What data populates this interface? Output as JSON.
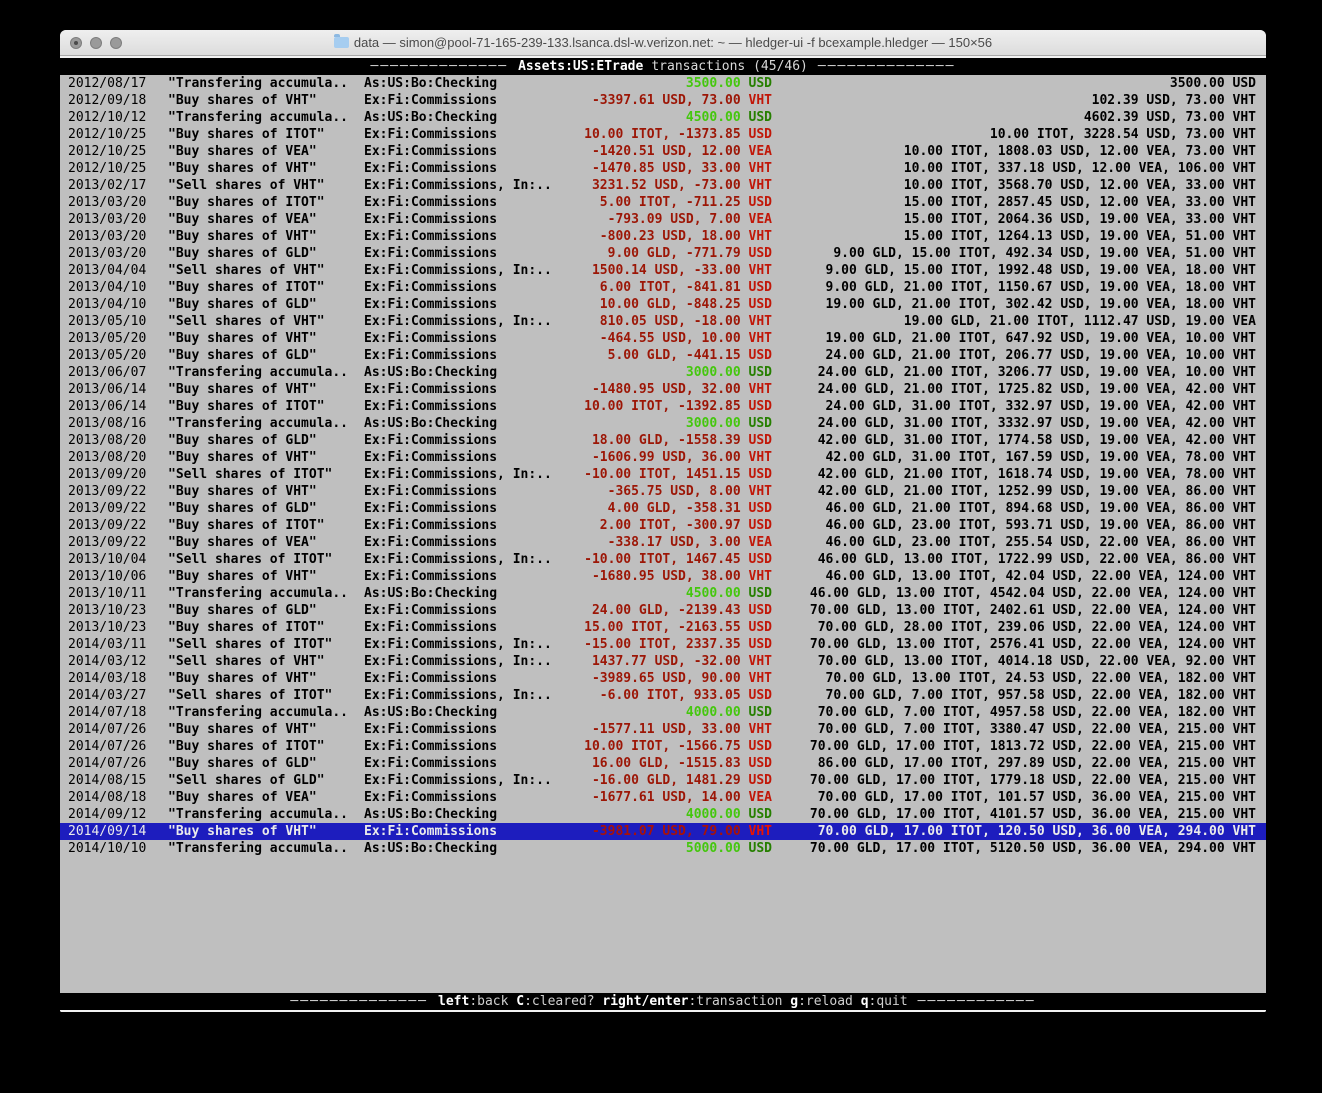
{
  "window": {
    "title": "data — simon@pool-71-165-239-133.lsanca.dsl-w.verizon.net: ~ — hledger-ui -f bcexample.hledger — 150×56"
  },
  "header": {
    "divider_left": "──────────────",
    "account": "Assets:US:ETrade",
    "label": "transactions (45/46)",
    "divider_right": "──────────────"
  },
  "footer": {
    "divider_left": "──────────────",
    "divider_right": "────────────",
    "keys": [
      {
        "key": "left",
        "desc": ":back"
      },
      {
        "key": "C",
        "desc": ":cleared?"
      },
      {
        "key": "right/enter",
        "desc": ":transaction"
      },
      {
        "key": "g",
        "desc": ":reload"
      },
      {
        "key": "q",
        "desc": ":quit"
      }
    ]
  },
  "colors": {
    "pos_bright": "#44c70d",
    "pos_dark": "#267f00",
    "neg_dark": "#9c1606",
    "neg_bright": "#c11708",
    "selected_bg": "#1d1dbe",
    "terminal_bg": "#bfbfbf"
  },
  "register": {
    "rows": [
      {
        "date": "2012/08/17",
        "desc": "\"Transfering accumula..",
        "account": "As:US:Bo:Checking",
        "amount": "3500.00 USD",
        "sign": "pos",
        "balance": "3500.00 USD",
        "selected": false
      },
      {
        "date": "2012/09/18",
        "desc": "\"Buy shares of VHT\"",
        "account": "Ex:Fi:Commissions",
        "amount": "-3397.61 USD, 73.00 VHT",
        "sign": "neg",
        "balance": "102.39 USD, 73.00 VHT",
        "selected": false
      },
      {
        "date": "2012/10/12",
        "desc": "\"Transfering accumula..",
        "account": "As:US:Bo:Checking",
        "amount": "4500.00 USD",
        "sign": "pos",
        "balance": "4602.39 USD, 73.00 VHT",
        "selected": false
      },
      {
        "date": "2012/10/25",
        "desc": "\"Buy shares of ITOT\"",
        "account": "Ex:Fi:Commissions",
        "amount": "10.00 ITOT, -1373.85 USD",
        "sign": "neg",
        "balance": "10.00 ITOT, 3228.54 USD, 73.00 VHT",
        "selected": false
      },
      {
        "date": "2012/10/25",
        "desc": "\"Buy shares of VEA\"",
        "account": "Ex:Fi:Commissions",
        "amount": "-1420.51 USD, 12.00 VEA",
        "sign": "neg",
        "balance": "10.00 ITOT, 1808.03 USD, 12.00 VEA, 73.00 VHT",
        "selected": false
      },
      {
        "date": "2012/10/25",
        "desc": "\"Buy shares of VHT\"",
        "account": "Ex:Fi:Commissions",
        "amount": "-1470.85 USD, 33.00 VHT",
        "sign": "neg",
        "balance": "10.00 ITOT, 337.18 USD, 12.00 VEA, 106.00 VHT",
        "selected": false
      },
      {
        "date": "2013/02/17",
        "desc": "\"Sell shares of VHT\"",
        "account": "Ex:Fi:Commissions, In:..",
        "amount": "3231.52 USD, -73.00 VHT",
        "sign": "neg",
        "balance": "10.00 ITOT, 3568.70 USD, 12.00 VEA, 33.00 VHT",
        "selected": false
      },
      {
        "date": "2013/03/20",
        "desc": "\"Buy shares of ITOT\"",
        "account": "Ex:Fi:Commissions",
        "amount": "5.00 ITOT, -711.25 USD",
        "sign": "neg",
        "balance": "15.00 ITOT, 2857.45 USD, 12.00 VEA, 33.00 VHT",
        "selected": false
      },
      {
        "date": "2013/03/20",
        "desc": "\"Buy shares of VEA\"",
        "account": "Ex:Fi:Commissions",
        "amount": "-793.09 USD, 7.00 VEA",
        "sign": "neg",
        "balance": "15.00 ITOT, 2064.36 USD, 19.00 VEA, 33.00 VHT",
        "selected": false
      },
      {
        "date": "2013/03/20",
        "desc": "\"Buy shares of VHT\"",
        "account": "Ex:Fi:Commissions",
        "amount": "-800.23 USD, 18.00 VHT",
        "sign": "neg",
        "balance": "15.00 ITOT, 1264.13 USD, 19.00 VEA, 51.00 VHT",
        "selected": false
      },
      {
        "date": "2013/03/20",
        "desc": "\"Buy shares of GLD\"",
        "account": "Ex:Fi:Commissions",
        "amount": "9.00 GLD, -771.79 USD",
        "sign": "neg",
        "balance": "9.00 GLD, 15.00 ITOT, 492.34 USD, 19.00 VEA, 51.00 VHT",
        "selected": false
      },
      {
        "date": "2013/04/04",
        "desc": "\"Sell shares of VHT\"",
        "account": "Ex:Fi:Commissions, In:..",
        "amount": "1500.14 USD, -33.00 VHT",
        "sign": "neg",
        "balance": "9.00 GLD, 15.00 ITOT, 1992.48 USD, 19.00 VEA, 18.00 VHT",
        "selected": false
      },
      {
        "date": "2013/04/10",
        "desc": "\"Buy shares of ITOT\"",
        "account": "Ex:Fi:Commissions",
        "amount": "6.00 ITOT, -841.81 USD",
        "sign": "neg",
        "balance": "9.00 GLD, 21.00 ITOT, 1150.67 USD, 19.00 VEA, 18.00 VHT",
        "selected": false
      },
      {
        "date": "2013/04/10",
        "desc": "\"Buy shares of GLD\"",
        "account": "Ex:Fi:Commissions",
        "amount": "10.00 GLD, -848.25 USD",
        "sign": "neg",
        "balance": "19.00 GLD, 21.00 ITOT, 302.42 USD, 19.00 VEA, 18.00 VHT",
        "selected": false
      },
      {
        "date": "2013/05/10",
        "desc": "\"Sell shares of VHT\"",
        "account": "Ex:Fi:Commissions, In:..",
        "amount": "810.05 USD, -18.00 VHT",
        "sign": "neg",
        "balance": "19.00 GLD, 21.00 ITOT, 1112.47 USD, 19.00 VEA",
        "selected": false
      },
      {
        "date": "2013/05/20",
        "desc": "\"Buy shares of VHT\"",
        "account": "Ex:Fi:Commissions",
        "amount": "-464.55 USD, 10.00 VHT",
        "sign": "neg",
        "balance": "19.00 GLD, 21.00 ITOT, 647.92 USD, 19.00 VEA, 10.00 VHT",
        "selected": false
      },
      {
        "date": "2013/05/20",
        "desc": "\"Buy shares of GLD\"",
        "account": "Ex:Fi:Commissions",
        "amount": "5.00 GLD, -441.15 USD",
        "sign": "neg",
        "balance": "24.00 GLD, 21.00 ITOT, 206.77 USD, 19.00 VEA, 10.00 VHT",
        "selected": false
      },
      {
        "date": "2013/06/07",
        "desc": "\"Transfering accumula..",
        "account": "As:US:Bo:Checking",
        "amount": "3000.00 USD",
        "sign": "pos",
        "balance": "24.00 GLD, 21.00 ITOT, 3206.77 USD, 19.00 VEA, 10.00 VHT",
        "selected": false
      },
      {
        "date": "2013/06/14",
        "desc": "\"Buy shares of VHT\"",
        "account": "Ex:Fi:Commissions",
        "amount": "-1480.95 USD, 32.00 VHT",
        "sign": "neg",
        "balance": "24.00 GLD, 21.00 ITOT, 1725.82 USD, 19.00 VEA, 42.00 VHT",
        "selected": false
      },
      {
        "date": "2013/06/14",
        "desc": "\"Buy shares of ITOT\"",
        "account": "Ex:Fi:Commissions",
        "amount": "10.00 ITOT, -1392.85 USD",
        "sign": "neg",
        "balance": "24.00 GLD, 31.00 ITOT, 332.97 USD, 19.00 VEA, 42.00 VHT",
        "selected": false
      },
      {
        "date": "2013/08/16",
        "desc": "\"Transfering accumula..",
        "account": "As:US:Bo:Checking",
        "amount": "3000.00 USD",
        "sign": "pos",
        "balance": "24.00 GLD, 31.00 ITOT, 3332.97 USD, 19.00 VEA, 42.00 VHT",
        "selected": false
      },
      {
        "date": "2013/08/20",
        "desc": "\"Buy shares of GLD\"",
        "account": "Ex:Fi:Commissions",
        "amount": "18.00 GLD, -1558.39 USD",
        "sign": "neg",
        "balance": "42.00 GLD, 31.00 ITOT, 1774.58 USD, 19.00 VEA, 42.00 VHT",
        "selected": false
      },
      {
        "date": "2013/08/20",
        "desc": "\"Buy shares of VHT\"",
        "account": "Ex:Fi:Commissions",
        "amount": "-1606.99 USD, 36.00 VHT",
        "sign": "neg",
        "balance": "42.00 GLD, 31.00 ITOT, 167.59 USD, 19.00 VEA, 78.00 VHT",
        "selected": false
      },
      {
        "date": "2013/09/20",
        "desc": "\"Sell shares of ITOT\"",
        "account": "Ex:Fi:Commissions, In:..",
        "amount": "-10.00 ITOT, 1451.15 USD",
        "sign": "neg",
        "balance": "42.00 GLD, 21.00 ITOT, 1618.74 USD, 19.00 VEA, 78.00 VHT",
        "selected": false
      },
      {
        "date": "2013/09/22",
        "desc": "\"Buy shares of VHT\"",
        "account": "Ex:Fi:Commissions",
        "amount": "-365.75 USD, 8.00 VHT",
        "sign": "neg",
        "balance": "42.00 GLD, 21.00 ITOT, 1252.99 USD, 19.00 VEA, 86.00 VHT",
        "selected": false
      },
      {
        "date": "2013/09/22",
        "desc": "\"Buy shares of GLD\"",
        "account": "Ex:Fi:Commissions",
        "amount": "4.00 GLD, -358.31 USD",
        "sign": "neg",
        "balance": "46.00 GLD, 21.00 ITOT, 894.68 USD, 19.00 VEA, 86.00 VHT",
        "selected": false
      },
      {
        "date": "2013/09/22",
        "desc": "\"Buy shares of ITOT\"",
        "account": "Ex:Fi:Commissions",
        "amount": "2.00 ITOT, -300.97 USD",
        "sign": "neg",
        "balance": "46.00 GLD, 23.00 ITOT, 593.71 USD, 19.00 VEA, 86.00 VHT",
        "selected": false
      },
      {
        "date": "2013/09/22",
        "desc": "\"Buy shares of VEA\"",
        "account": "Ex:Fi:Commissions",
        "amount": "-338.17 USD, 3.00 VEA",
        "sign": "neg",
        "balance": "46.00 GLD, 23.00 ITOT, 255.54 USD, 22.00 VEA, 86.00 VHT",
        "selected": false
      },
      {
        "date": "2013/10/04",
        "desc": "\"Sell shares of ITOT\"",
        "account": "Ex:Fi:Commissions, In:..",
        "amount": "-10.00 ITOT, 1467.45 USD",
        "sign": "neg",
        "balance": "46.00 GLD, 13.00 ITOT, 1722.99 USD, 22.00 VEA, 86.00 VHT",
        "selected": false
      },
      {
        "date": "2013/10/06",
        "desc": "\"Buy shares of VHT\"",
        "account": "Ex:Fi:Commissions",
        "amount": "-1680.95 USD, 38.00 VHT",
        "sign": "neg",
        "balance": "46.00 GLD, 13.00 ITOT, 42.04 USD, 22.00 VEA, 124.00 VHT",
        "selected": false
      },
      {
        "date": "2013/10/11",
        "desc": "\"Transfering accumula..",
        "account": "As:US:Bo:Checking",
        "amount": "4500.00 USD",
        "sign": "pos",
        "balance": "46.00 GLD, 13.00 ITOT, 4542.04 USD, 22.00 VEA, 124.00 VHT",
        "selected": false
      },
      {
        "date": "2013/10/23",
        "desc": "\"Buy shares of GLD\"",
        "account": "Ex:Fi:Commissions",
        "amount": "24.00 GLD, -2139.43 USD",
        "sign": "neg",
        "balance": "70.00 GLD, 13.00 ITOT, 2402.61 USD, 22.00 VEA, 124.00 VHT",
        "selected": false
      },
      {
        "date": "2013/10/23",
        "desc": "\"Buy shares of ITOT\"",
        "account": "Ex:Fi:Commissions",
        "amount": "15.00 ITOT, -2163.55 USD",
        "sign": "neg",
        "balance": "70.00 GLD, 28.00 ITOT, 239.06 USD, 22.00 VEA, 124.00 VHT",
        "selected": false
      },
      {
        "date": "2014/03/11",
        "desc": "\"Sell shares of ITOT\"",
        "account": "Ex:Fi:Commissions, In:..",
        "amount": "-15.00 ITOT, 2337.35 USD",
        "sign": "neg",
        "balance": "70.00 GLD, 13.00 ITOT, 2576.41 USD, 22.00 VEA, 124.00 VHT",
        "selected": false
      },
      {
        "date": "2014/03/12",
        "desc": "\"Sell shares of VHT\"",
        "account": "Ex:Fi:Commissions, In:..",
        "amount": "1437.77 USD, -32.00 VHT",
        "sign": "neg",
        "balance": "70.00 GLD, 13.00 ITOT, 4014.18 USD, 22.00 VEA, 92.00 VHT",
        "selected": false
      },
      {
        "date": "2014/03/18",
        "desc": "\"Buy shares of VHT\"",
        "account": "Ex:Fi:Commissions",
        "amount": "-3989.65 USD, 90.00 VHT",
        "sign": "neg",
        "balance": "70.00 GLD, 13.00 ITOT, 24.53 USD, 22.00 VEA, 182.00 VHT",
        "selected": false
      },
      {
        "date": "2014/03/27",
        "desc": "\"Sell shares of ITOT\"",
        "account": "Ex:Fi:Commissions, In:..",
        "amount": "-6.00 ITOT, 933.05 USD",
        "sign": "neg",
        "balance": "70.00 GLD, 7.00 ITOT, 957.58 USD, 22.00 VEA, 182.00 VHT",
        "selected": false
      },
      {
        "date": "2014/07/18",
        "desc": "\"Transfering accumula..",
        "account": "As:US:Bo:Checking",
        "amount": "4000.00 USD",
        "sign": "pos",
        "balance": "70.00 GLD, 7.00 ITOT, 4957.58 USD, 22.00 VEA, 182.00 VHT",
        "selected": false
      },
      {
        "date": "2014/07/26",
        "desc": "\"Buy shares of VHT\"",
        "account": "Ex:Fi:Commissions",
        "amount": "-1577.11 USD, 33.00 VHT",
        "sign": "neg",
        "balance": "70.00 GLD, 7.00 ITOT, 3380.47 USD, 22.00 VEA, 215.00 VHT",
        "selected": false
      },
      {
        "date": "2014/07/26",
        "desc": "\"Buy shares of ITOT\"",
        "account": "Ex:Fi:Commissions",
        "amount": "10.00 ITOT, -1566.75 USD",
        "sign": "neg",
        "balance": "70.00 GLD, 17.00 ITOT, 1813.72 USD, 22.00 VEA, 215.00 VHT",
        "selected": false
      },
      {
        "date": "2014/07/26",
        "desc": "\"Buy shares of GLD\"",
        "account": "Ex:Fi:Commissions",
        "amount": "16.00 GLD, -1515.83 USD",
        "sign": "neg",
        "balance": "86.00 GLD, 17.00 ITOT, 297.89 USD, 22.00 VEA, 215.00 VHT",
        "selected": false
      },
      {
        "date": "2014/08/15",
        "desc": "\"Sell shares of GLD\"",
        "account": "Ex:Fi:Commissions, In:..",
        "amount": "-16.00 GLD, 1481.29 USD",
        "sign": "neg",
        "balance": "70.00 GLD, 17.00 ITOT, 1779.18 USD, 22.00 VEA, 215.00 VHT",
        "selected": false
      },
      {
        "date": "2014/08/18",
        "desc": "\"Buy shares of VEA\"",
        "account": "Ex:Fi:Commissions",
        "amount": "-1677.61 USD, 14.00 VEA",
        "sign": "neg",
        "balance": "70.00 GLD, 17.00 ITOT, 101.57 USD, 36.00 VEA, 215.00 VHT",
        "selected": false
      },
      {
        "date": "2014/09/12",
        "desc": "\"Transfering accumula..",
        "account": "As:US:Bo:Checking",
        "amount": "4000.00 USD",
        "sign": "pos",
        "balance": "70.00 GLD, 17.00 ITOT, 4101.57 USD, 36.00 VEA, 215.00 VHT",
        "selected": false
      },
      {
        "date": "2014/09/14",
        "desc": "\"Buy shares of VHT\"",
        "account": "Ex:Fi:Commissions",
        "amount": "-3981.07 USD, 79.00 VHT",
        "sign": "neg",
        "balance": "70.00 GLD, 17.00 ITOT, 120.50 USD, 36.00 VEA, 294.00 VHT",
        "selected": true
      },
      {
        "date": "2014/10/10",
        "desc": "\"Transfering accumula..",
        "account": "As:US:Bo:Checking",
        "amount": "5000.00 USD",
        "sign": "pos",
        "balance": "70.00 GLD, 17.00 ITOT, 5120.50 USD, 36.00 VEA, 294.00 VHT",
        "selected": false
      }
    ]
  }
}
